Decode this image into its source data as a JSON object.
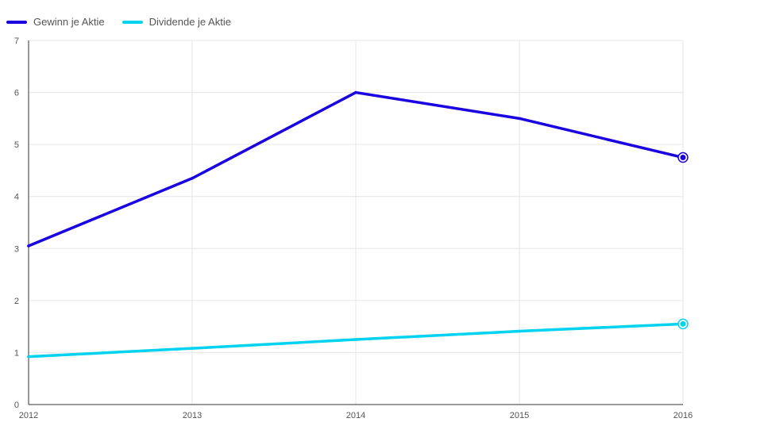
{
  "chart_data": {
    "type": "line",
    "title": "",
    "xlabel": "",
    "ylabel": "",
    "x": [
      "2012",
      "2013",
      "2014",
      "2015",
      "2016"
    ],
    "ylim": [
      0,
      7
    ],
    "yticks": [
      "0",
      "1",
      "2",
      "3",
      "4",
      "5",
      "6",
      "7"
    ],
    "grid": true,
    "legend_position": "top-left",
    "series": [
      {
        "name": "Gewinn je Aktie",
        "color": "#1a00e0",
        "values": [
          3.05,
          4.35,
          6.0,
          5.5,
          4.75
        ]
      },
      {
        "name": "Dividende je Aktie",
        "color": "#00d2f0",
        "values": [
          0.92,
          1.08,
          1.25,
          1.41,
          1.55
        ]
      }
    ]
  }
}
